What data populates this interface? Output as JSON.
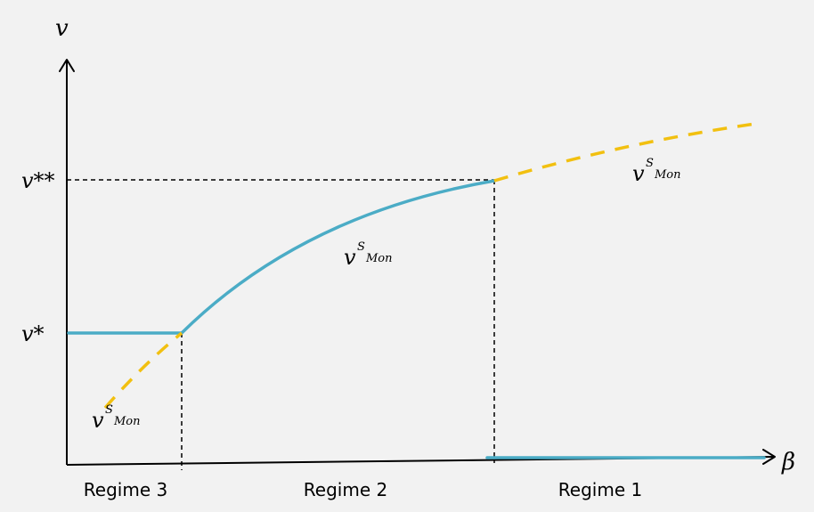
{
  "axes": {
    "y_label": "v",
    "x_label": "β"
  },
  "y_ticks": {
    "v_double_star": "v**",
    "v_star": "v*"
  },
  "curve_labels": {
    "base": "v",
    "superscript": "S",
    "subscript": "Mon"
  },
  "regimes": [
    "Regime 3",
    "Regime 2",
    "Regime 1"
  ],
  "colors": {
    "solid_curve": "#4bacc6",
    "dashed_curve": "#f2c010",
    "background": "#f2f2f2"
  }
}
